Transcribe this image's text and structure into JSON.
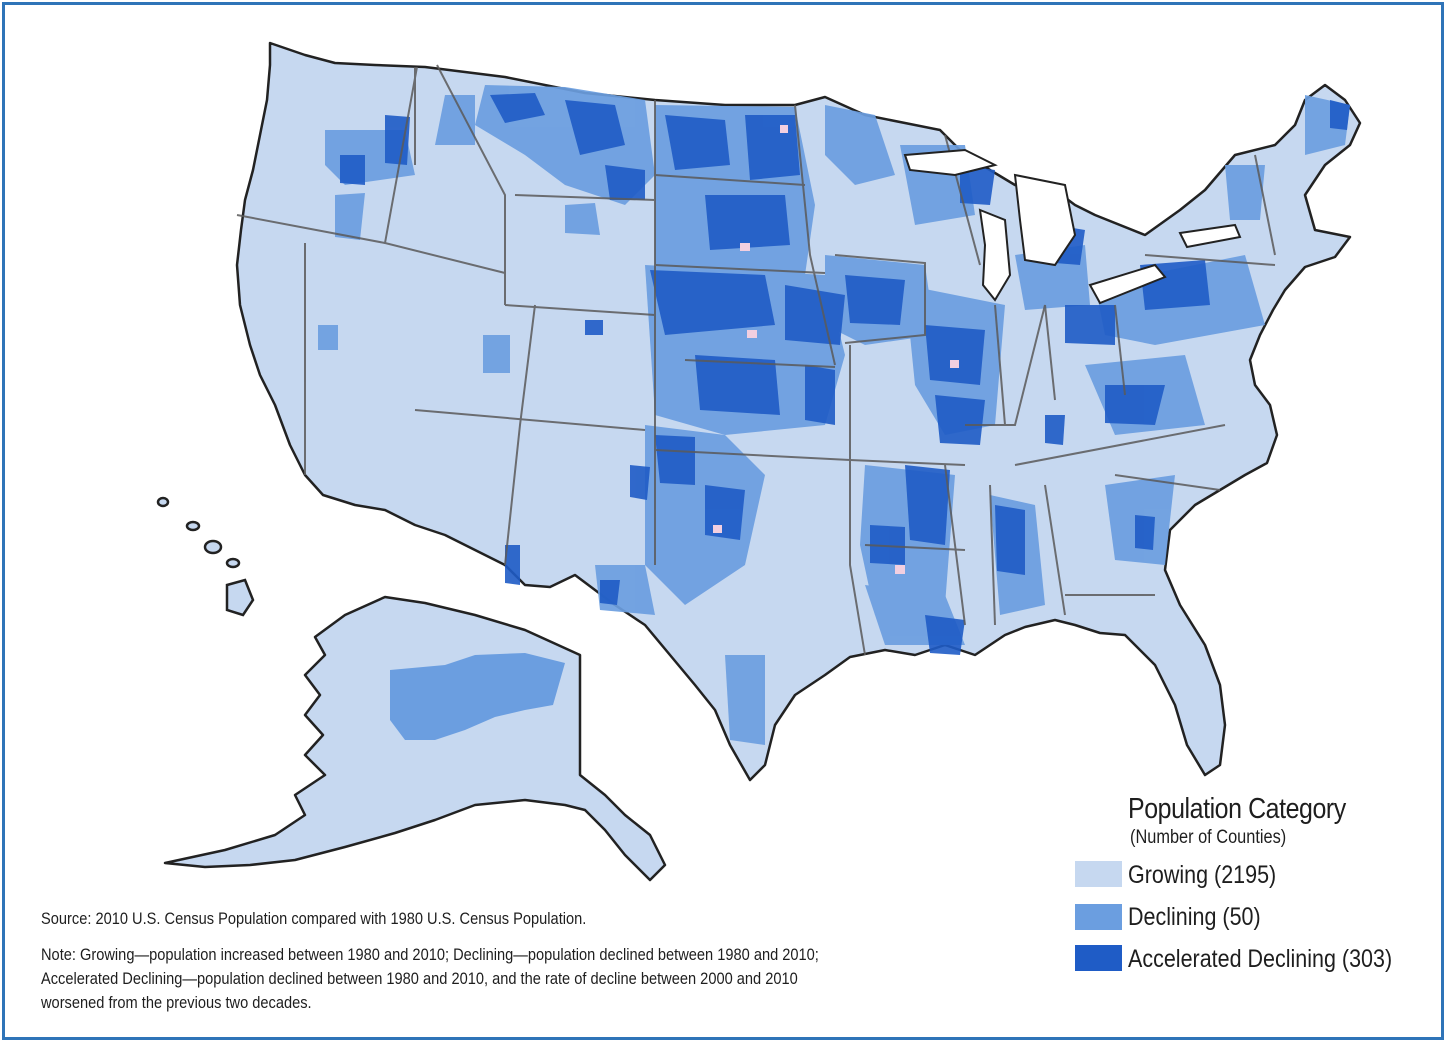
{
  "legend": {
    "title": "Population Category",
    "subtitle": "(Number of Counties)",
    "items": [
      {
        "label": "Growing (2195)",
        "color": "#c6d8f0"
      },
      {
        "label": "Declining (50)",
        "color": "#6b9ee0"
      },
      {
        "label": "Accelerated Declining (303)",
        "color": "#1f5cc6"
      }
    ]
  },
  "notes": {
    "source": "Source: 2010 U.S. Census Population compared with 1980 U.S. Census Population.",
    "note_lines": [
      "Note: Growing—population increased between 1980 and 2010; Declining—population declined between 1980 and 2010;",
      "Accelerated Declining—population  declined between 1980 and 2010, and the rate of decline between 2000 and 2010",
      "worsened from the previous two decades."
    ]
  },
  "colors": {
    "growing": "#c6d8f0",
    "declining": "#6b9ee0",
    "accelerated": "#1f5cc6",
    "border": "#2f74b8",
    "state_lines": "#5a5a5a"
  }
}
